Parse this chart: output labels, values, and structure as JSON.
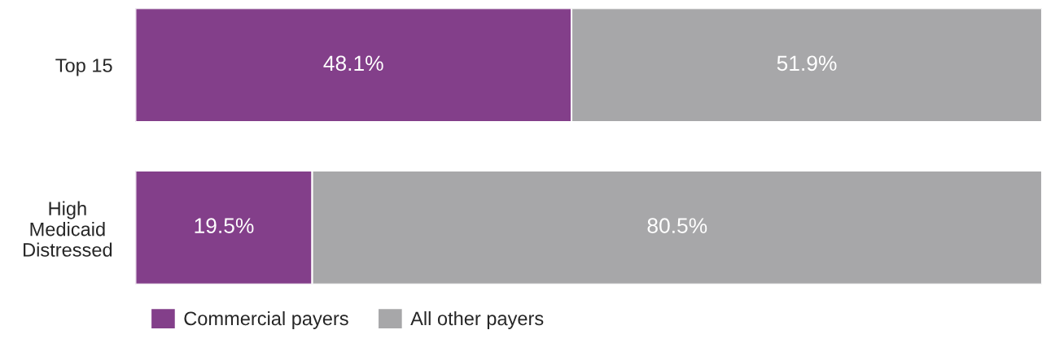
{
  "chart_data": {
    "type": "bar",
    "orientation": "horizontal",
    "stacked": true,
    "categories": [
      "Top 15",
      "High\nMedicaid\nDistressed"
    ],
    "series": [
      {
        "name": "Commercial payers",
        "color": "#833f8a",
        "values": [
          48.1,
          19.5
        ],
        "value_labels": [
          "48.1%",
          "19.5%"
        ]
      },
      {
        "name": "All other payers",
        "color": "#a7a7a9",
        "values": [
          51.9,
          80.5
        ],
        "value_labels": [
          "51.9%",
          "80.5%"
        ]
      }
    ],
    "tick_labels": "y",
    "grid": false,
    "legend": "bottom left"
  }
}
